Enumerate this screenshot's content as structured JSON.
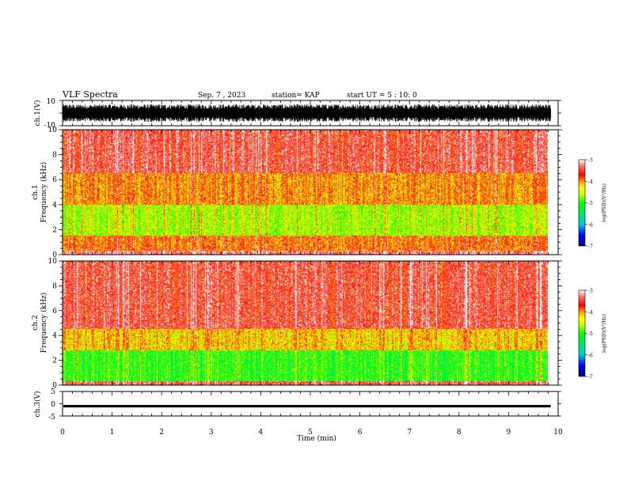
{
  "header": {
    "title": "VLF Spectra",
    "date": "Sep. 7 , 2023",
    "station": "station= KAP",
    "start": "start  UT =  5 : 10: 0"
  },
  "panels": {
    "ch1_wave": {
      "ylabel": "ch.1(V)",
      "ytop": "10",
      "ybottom": "-10"
    },
    "ch1_spec": {
      "ylabel_line1": "ch.1",
      "ylabel_line2": "Frequency  (kHz)"
    },
    "ch2_spec": {
      "ylabel_line1": "ch.2",
      "ylabel_line2": "Frequency  (kHz)"
    },
    "ch3_wave": {
      "ylabel": "ch.3(V)",
      "ytop": "5",
      "ymid": "0",
      "ybottom": "-5"
    }
  },
  "colorbar": {
    "label": "log(PSD)(V²/Hz)",
    "ticks": [
      "-3",
      "-4",
      "-5",
      "-6",
      "-7"
    ],
    "colors": [
      "#ffffff",
      "#ff0000",
      "#ff8c00",
      "#ffff00",
      "#00ff00",
      "#00c8c8",
      "#0000ff",
      "#000080"
    ]
  },
  "chart_data": [
    {
      "type": "line",
      "name": "ch.1 waveform",
      "xlim": [
        0,
        10
      ],
      "ylim": [
        -10,
        10
      ],
      "yticks": [
        "10",
        "-10"
      ],
      "trace": "broadband noise, approx -7 to +7 V"
    },
    {
      "type": "heatmap",
      "name": "ch.1 spectrogram",
      "xlim": [
        0,
        10
      ],
      "ylim": [
        0,
        10
      ],
      "yticks": [
        "0",
        "2",
        "4",
        "6",
        "8",
        "10"
      ],
      "data_extent_min": 9.8,
      "bands": [
        {
          "f_from": 0.0,
          "f_to": 0.3,
          "level": -3.3
        },
        {
          "f_from": 0.3,
          "f_to": 1.5,
          "level": -3.9
        },
        {
          "f_from": 1.5,
          "f_to": 4.0,
          "level": -4.6
        },
        {
          "f_from": 4.0,
          "f_to": 6.5,
          "level": -4.0
        },
        {
          "f_from": 6.5,
          "f_to": 10.0,
          "level": -3.5
        }
      ]
    },
    {
      "type": "heatmap",
      "name": "ch.2 spectrogram",
      "xlim": [
        0,
        10
      ],
      "ylim": [
        0,
        10
      ],
      "yticks": [
        "0",
        "2",
        "4",
        "6",
        "8",
        "10"
      ],
      "data_extent_min": 9.8,
      "bands": [
        {
          "f_from": 0.0,
          "f_to": 0.3,
          "level": -3.4
        },
        {
          "f_from": 0.3,
          "f_to": 2.8,
          "level": -5.0
        },
        {
          "f_from": 2.8,
          "f_to": 4.5,
          "level": -4.2
        },
        {
          "f_from": 4.5,
          "f_to": 10.0,
          "level": -3.5
        }
      ]
    },
    {
      "type": "line",
      "name": "ch.3 waveform",
      "xlim": [
        0,
        10
      ],
      "ylim": [
        -5,
        5
      ],
      "yticks": [
        "5",
        "0",
        "-5"
      ],
      "trace": "band about -1 V, approx -1.5 to -0.5 V"
    }
  ],
  "xaxis": {
    "label": "Time  (min)",
    "ticks": [
      "0",
      "1",
      "2",
      "3",
      "4",
      "5",
      "6",
      "7",
      "8",
      "9",
      "10"
    ]
  },
  "colors": {
    "frame": "#000000",
    "background": "#ffffff"
  }
}
